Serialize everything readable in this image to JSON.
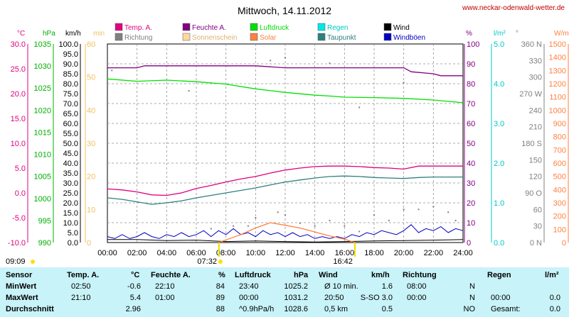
{
  "title": "Mittwoch, 14.11.2012",
  "website": "www.neckar-odenwald-wetter.de",
  "legend": [
    {
      "label": "Temp. A.",
      "color": "#e0007f"
    },
    {
      "label": "Feuchte A.",
      "color": "#800080"
    },
    {
      "label": "Luftdruck",
      "color": "#00e000"
    },
    {
      "label": "Regen",
      "color": "#00e8e8"
    },
    {
      "label": "Wind",
      "color": "#000000"
    },
    {
      "label": "Richtung",
      "color": "#808080"
    },
    {
      "label": "Sonnenschein",
      "color": "#ffd8a0"
    },
    {
      "label": "Solar",
      "color": "#ff8040"
    },
    {
      "label": "Taupunkt",
      "color": "#2e8080"
    },
    {
      "label": "Windböen",
      "color": "#0000c0"
    }
  ],
  "axis_units": {
    "temp": "°C",
    "press": "hPa",
    "wind": "km/h",
    "sun": "min",
    "hum": "%",
    "rain": "l/m²",
    "dir": "°",
    "solar": "W/m²"
  },
  "sunrise": {
    "time": "07:32",
    "label_left": "09:09"
  },
  "sunset": {
    "time": "16:42"
  },
  "chart_data": {
    "type": "line",
    "x_ticks": [
      "00:00",
      "02:00",
      "04:00",
      "06:00",
      "08:00",
      "10:00",
      "12:00",
      "14:00",
      "16:00",
      "18:00",
      "20:00",
      "22:00",
      "24:00"
    ],
    "axes": {
      "temp": {
        "ylim": [
          -10,
          30
        ],
        "ticks": [
          "30.0",
          "25.0",
          "20.0",
          "15.0",
          "10.0",
          "5.0",
          "0.0",
          "-5.0",
          "-10.0"
        ]
      },
      "press": {
        "ylim": [
          990,
          1040
        ],
        "ticks": [
          "1035",
          "1030",
          "1025",
          "1020",
          "1015",
          "1010",
          "1005",
          "1000",
          "995",
          "990"
        ]
      },
      "wind": {
        "ylim": [
          0,
          100
        ],
        "ticks": [
          "100.0",
          "95.0",
          "90.0",
          "85.0",
          "80.0",
          "75.0",
          "70.0",
          "65.0",
          "60.0",
          "55.0",
          "50.0",
          "45.0",
          "40.0",
          "35.0",
          "30.0",
          "25.0",
          "20.0",
          "15.0",
          "10.0",
          "5.0",
          "0.0"
        ]
      },
      "sun": {
        "ylim": [
          0,
          60
        ],
        "ticks": [
          "0",
          "10",
          "20",
          "30",
          "40",
          "50",
          "60"
        ]
      },
      "hum": {
        "ylim": [
          0,
          100
        ],
        "ticks": [
          "100",
          "90",
          "80",
          "70",
          "60",
          "50",
          "40",
          "30",
          "20",
          "10",
          "0"
        ]
      },
      "rain": {
        "ylim": [
          0,
          5
        ],
        "ticks": [
          "5.0",
          "4.0",
          "3.0",
          "2.0",
          "1.0",
          "0.0"
        ]
      },
      "dir": {
        "ylim": [
          0,
          360
        ],
        "ticks": [
          "360 N",
          "330",
          "300",
          "270 W",
          "240",
          "210",
          "180 S",
          "150",
          "120",
          "90 O",
          "60",
          "30",
          "0 N"
        ]
      },
      "solar": {
        "ylim": [
          0,
          1500
        ],
        "ticks": [
          "1500",
          "1400",
          "1300",
          "1200",
          "1100",
          "1000",
          "900",
          "800",
          "700",
          "600",
          "500",
          "400",
          "300",
          "200",
          "100",
          "0"
        ]
      }
    },
    "series": [
      {
        "name": "Temp. A.",
        "axis": "temp",
        "points": [
          [
            0,
            0.8
          ],
          [
            1,
            0.6
          ],
          [
            2,
            0.2
          ],
          [
            3,
            -0.4
          ],
          [
            4,
            -0.5
          ],
          [
            5,
            0.0
          ],
          [
            6,
            0.9
          ],
          [
            7,
            1.5
          ],
          [
            8,
            2.2
          ],
          [
            9,
            2.8
          ],
          [
            10,
            3.3
          ],
          [
            11,
            4.0
          ],
          [
            12,
            4.6
          ],
          [
            13,
            5.0
          ],
          [
            14,
            5.3
          ],
          [
            15,
            5.4
          ],
          [
            16,
            5.4
          ],
          [
            17,
            5.3
          ],
          [
            18,
            5.1
          ],
          [
            19,
            5.0
          ],
          [
            20,
            4.8
          ],
          [
            21,
            5.4
          ],
          [
            22,
            5.4
          ],
          [
            23,
            5.4
          ],
          [
            24,
            5.4
          ]
        ]
      },
      {
        "name": "Feuchte A.",
        "axis": "hum",
        "points": [
          [
            0,
            88
          ],
          [
            2,
            88
          ],
          [
            2.5,
            89
          ],
          [
            4,
            89
          ],
          [
            8,
            89
          ],
          [
            10,
            89
          ],
          [
            12,
            88
          ],
          [
            15,
            88
          ],
          [
            18,
            88
          ],
          [
            20,
            88
          ],
          [
            20.5,
            86
          ],
          [
            22,
            85
          ],
          [
            22.5,
            84
          ],
          [
            24,
            84
          ]
        ]
      },
      {
        "name": "Luftdruck",
        "axis": "press",
        "points": [
          [
            0,
            1031.2
          ],
          [
            2,
            1030.6
          ],
          [
            4,
            1030.9
          ],
          [
            6,
            1030.5
          ],
          [
            8,
            1029.9
          ],
          [
            10,
            1028.7
          ],
          [
            12,
            1027.8
          ],
          [
            14,
            1027.1
          ],
          [
            15,
            1026.9
          ],
          [
            16,
            1026.6
          ],
          [
            18,
            1026.5
          ],
          [
            20,
            1026.3
          ],
          [
            22,
            1025.9
          ],
          [
            24,
            1025.2
          ]
        ]
      },
      {
        "name": "Taupunkt",
        "axis": "temp",
        "points": [
          [
            0,
            -1.0
          ],
          [
            1,
            -1.3
          ],
          [
            2,
            -1.8
          ],
          [
            3,
            -2.3
          ],
          [
            4,
            -2.0
          ],
          [
            5,
            -1.6
          ],
          [
            6,
            -1.0
          ],
          [
            7,
            -0.5
          ],
          [
            8,
            0.0
          ],
          [
            9,
            0.5
          ],
          [
            10,
            1.0
          ],
          [
            11,
            1.6
          ],
          [
            12,
            2.2
          ],
          [
            13,
            2.6
          ],
          [
            14,
            3.0
          ],
          [
            15,
            3.3
          ],
          [
            16,
            3.4
          ],
          [
            17,
            3.3
          ],
          [
            18,
            3.1
          ],
          [
            19,
            3.0
          ],
          [
            20,
            2.9
          ],
          [
            21,
            3.1
          ],
          [
            22,
            3.2
          ],
          [
            23,
            3.2
          ],
          [
            24,
            3.2
          ]
        ]
      },
      {
        "name": "Wind",
        "axis": "wind",
        "points": [
          [
            0,
            1.5
          ],
          [
            2,
            1.5
          ],
          [
            4,
            1.0
          ],
          [
            6,
            1.2
          ],
          [
            8,
            0.5
          ],
          [
            10,
            0.8
          ],
          [
            12,
            0.5
          ],
          [
            14,
            0.3
          ],
          [
            16,
            0.5
          ],
          [
            18,
            0.8
          ],
          [
            20,
            1.0
          ],
          [
            22,
            1.2
          ],
          [
            24,
            1.5
          ]
        ]
      },
      {
        "name": "Windböen",
        "axis": "wind",
        "points": [
          [
            0,
            3
          ],
          [
            0.5,
            2
          ],
          [
            1,
            4
          ],
          [
            1.5,
            2
          ],
          [
            2,
            3
          ],
          [
            2.5,
            5
          ],
          [
            3,
            3
          ],
          [
            3.5,
            2
          ],
          [
            4,
            4
          ],
          [
            4.5,
            3
          ],
          [
            5,
            5
          ],
          [
            5.5,
            3
          ],
          [
            6,
            4
          ],
          [
            6.5,
            6
          ],
          [
            7,
            3
          ],
          [
            7.5,
            6
          ],
          [
            8,
            4
          ],
          [
            8.5,
            7
          ],
          [
            9,
            4
          ],
          [
            9.5,
            5
          ],
          [
            10,
            3
          ],
          [
            10.5,
            6
          ],
          [
            11,
            4
          ],
          [
            11.5,
            5
          ],
          [
            12,
            3
          ],
          [
            12.5,
            5
          ],
          [
            13,
            3
          ],
          [
            13.5,
            4
          ],
          [
            14,
            2
          ],
          [
            14.5,
            3
          ],
          [
            15,
            2
          ],
          [
            15.5,
            3
          ],
          [
            16,
            2
          ],
          [
            16.5,
            4
          ],
          [
            17,
            3
          ],
          [
            17.5,
            5
          ],
          [
            18,
            4
          ],
          [
            18.5,
            6
          ],
          [
            19,
            5
          ],
          [
            19.5,
            4
          ],
          [
            20,
            6
          ],
          [
            20.5,
            9
          ],
          [
            21,
            5
          ],
          [
            21.5,
            7
          ],
          [
            22,
            6
          ],
          [
            22.5,
            8
          ],
          [
            23,
            5
          ],
          [
            23.5,
            7
          ],
          [
            24,
            6
          ]
        ]
      },
      {
        "name": "Solar",
        "axis": "solar",
        "points": [
          [
            7.5,
            0
          ],
          [
            8,
            20
          ],
          [
            9,
            60
          ],
          [
            10,
            110
          ],
          [
            11,
            150
          ],
          [
            12,
            130
          ],
          [
            13,
            110
          ],
          [
            14,
            80
          ],
          [
            15,
            50
          ],
          [
            16,
            25
          ],
          [
            16.7,
            0
          ]
        ]
      }
    ],
    "richtung_dots": [
      [
        0.3,
        312
      ],
      [
        5.5,
        275
      ],
      [
        7,
        25
      ],
      [
        8.5,
        30
      ],
      [
        9.5,
        30
      ],
      [
        10,
        45
      ],
      [
        11.5,
        55
      ],
      [
        12,
        50
      ],
      [
        13,
        35
      ],
      [
        14,
        30
      ],
      [
        15,
        40
      ],
      [
        16,
        30
      ],
      [
        17,
        20
      ],
      [
        18,
        50
      ],
      [
        19,
        40
      ],
      [
        20,
        60
      ],
      [
        21,
        60
      ],
      [
        22,
        65
      ],
      [
        23,
        55
      ],
      [
        23.5,
        40
      ],
      [
        11,
        330
      ],
      [
        12,
        335
      ],
      [
        15,
        325
      ],
      [
        17,
        245
      ],
      [
        20,
        290
      ]
    ]
  },
  "stats": {
    "headers": {
      "sensor": "Sensor",
      "temp": "Temp. A.",
      "temp_unit": "°C",
      "hum": "Feuchte A.",
      "hum_unit": "%",
      "press": "Luftdruck",
      "press_unit": "hPa",
      "wind": "Wind",
      "wind_unit": "km/h",
      "dir": "Richtung",
      "rain": "Regen",
      "rain_unit": "l/m²"
    },
    "rows": [
      {
        "label": "MinWert",
        "temp_time": "02:50",
        "temp_val": "-0.6",
        "hum_time": "22:10",
        "hum_val": "84",
        "press_time": "23:40",
        "press_val": "1025.2",
        "wind_time": "Ø 10 min.",
        "wind_val": "1.6",
        "dir_time": "08:00",
        "dir_val": "N",
        "rain_time": "",
        "rain_val": ""
      },
      {
        "label": "MaxWert",
        "temp_time": "21:10",
        "temp_val": "5.4",
        "hum_time": "01:00",
        "hum_val": "89",
        "press_time": "00:00",
        "press_val": "1031.2",
        "wind_time": "20:50",
        "wind_val": "S-SO 3.0",
        "dir_time": "00:00",
        "dir_val": "N",
        "rain_time": "00:00",
        "rain_val": "0.0"
      },
      {
        "label": "Durchschnitt",
        "temp_time": "",
        "temp_val": "2.96",
        "hum_time": "",
        "hum_val": "88",
        "press_time": "^0.9hPa/h",
        "press_val": "1028.6",
        "wind_time": "0,5 km",
        "wind_val": "0.5",
        "dir_time": "",
        "dir_val": "NO",
        "rain_time": "Gesamt:",
        "rain_val": "0.0"
      }
    ]
  }
}
